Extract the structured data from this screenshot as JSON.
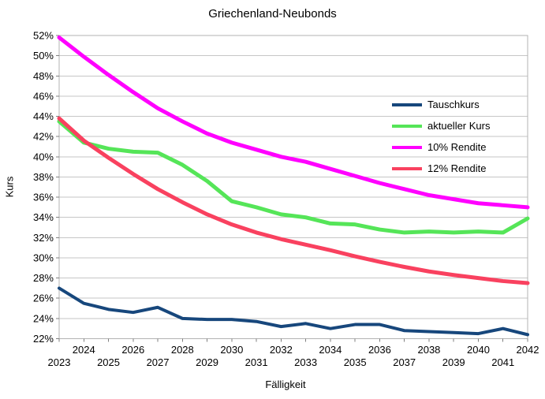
{
  "title": "Griechenland-Neubonds",
  "colors": {
    "background": "#ffffff",
    "gridline": "#c6c6c6",
    "plot_border": "#b3b3b3",
    "tick": "#808080",
    "text": "#000000"
  },
  "chart_data": {
    "type": "line",
    "title": "Griechenland-Neubonds",
    "xlabel": "Fälligkeit",
    "ylabel": "Kurs",
    "x": [
      2023,
      2024,
      2025,
      2026,
      2027,
      2028,
      2029,
      2030,
      2031,
      2032,
      2033,
      2034,
      2035,
      2036,
      2037,
      2038,
      2039,
      2040,
      2041,
      2042
    ],
    "ylim": [
      22,
      52
    ],
    "ytick_step": 2,
    "ytick_suffix": "%",
    "grid": true,
    "legend_position": "inside-upper-right",
    "series": [
      {
        "name": "Tauschkurs",
        "color": "#17477c",
        "width": 4,
        "values": [
          27.0,
          25.5,
          24.9,
          24.6,
          25.1,
          24.0,
          23.9,
          23.9,
          23.7,
          23.2,
          23.5,
          23.0,
          23.4,
          23.4,
          22.8,
          22.7,
          22.6,
          22.5,
          23.0,
          22.4
        ]
      },
      {
        "name": "aktueller Kurs",
        "color": "#55e558",
        "width": 5,
        "values": [
          43.5,
          41.4,
          40.8,
          40.5,
          40.4,
          39.2,
          37.6,
          35.6,
          35.0,
          34.3,
          34.0,
          33.4,
          33.3,
          32.8,
          32.5,
          32.6,
          32.5,
          32.6,
          32.5,
          33.9
        ]
      },
      {
        "name": "10% Rendite",
        "color": "#ff00ff",
        "width": 5,
        "values": [
          51.8,
          49.9,
          48.1,
          46.4,
          44.8,
          43.5,
          42.3,
          41.4,
          40.7,
          40.0,
          39.5,
          38.8,
          38.1,
          37.4,
          36.8,
          36.2,
          35.8,
          35.4,
          35.2,
          35.0
        ]
      },
      {
        "name": "12% Rendite",
        "color": "#f9415f",
        "width": 5,
        "values": [
          43.8,
          41.6,
          39.9,
          38.3,
          36.8,
          35.5,
          34.3,
          33.3,
          32.5,
          31.85,
          31.3,
          30.75,
          30.15,
          29.6,
          29.1,
          28.65,
          28.3,
          28.0,
          27.7,
          27.5
        ]
      }
    ]
  }
}
